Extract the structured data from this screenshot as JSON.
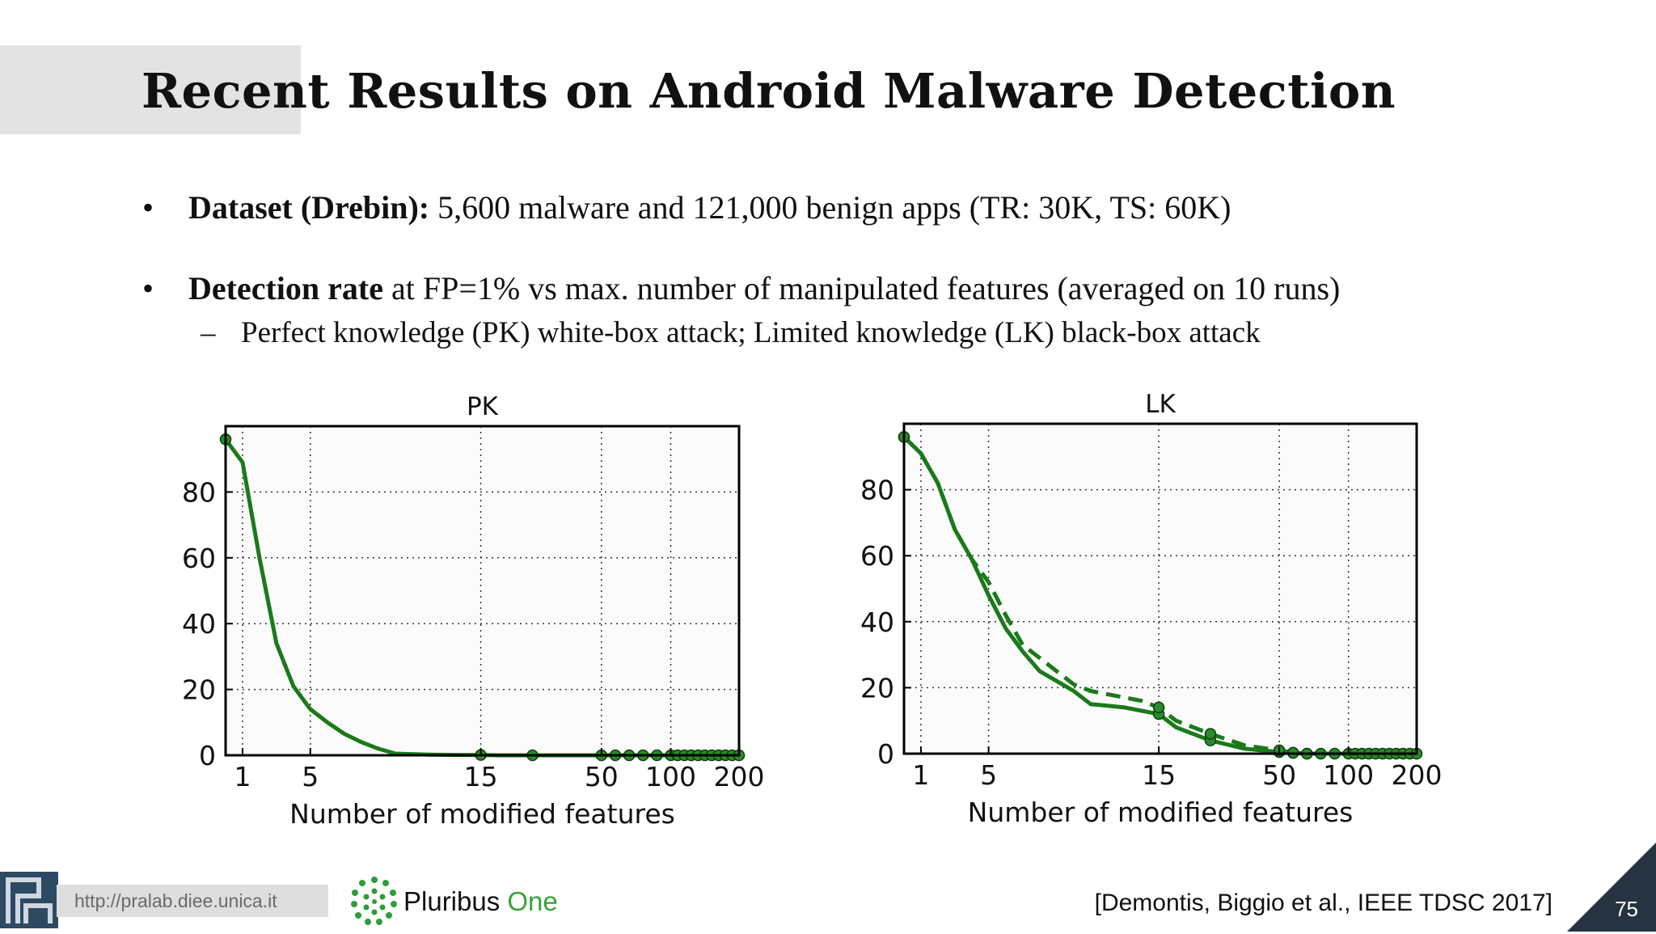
{
  "slide": {
    "title": "Recent Results on Android Malware Detection",
    "bullet1_bold": "Dataset (Drebin):",
    "bullet1_text": " 5,600 malware and 121,000 benign apps (TR: 30K, TS: 60K)",
    "bullet2_bold": "Detection rate",
    "bullet2_text": " at FP=1% vs max. number of manipulated features (averaged on 10 runs)",
    "sub_bullet": "Perfect knowledge (PK) white-box attack; Limited knowledge (LK) black-box attack",
    "bullet_glyph": "•",
    "dash_glyph": "–",
    "footer_url": "http://pralab.diee.unica.it",
    "brand_name_a": "Pluribus ",
    "brand_name_b": "One",
    "citation": "[Demontis, Biggio et al., IEEE TDSC 2017]",
    "page_number": "75",
    "accent_color": "#1a7a1a",
    "corner_color": "#263340"
  },
  "chart_data": [
    {
      "type": "line",
      "title": "PK",
      "xlabel": "Number of modified features",
      "ylabel": "",
      "ylim": [
        0,
        100
      ],
      "yticks": [
        0,
        20,
        40,
        60,
        80
      ],
      "xticks": [
        "1",
        "5",
        "15",
        "50",
        "100",
        "200"
      ],
      "grid": true,
      "series": [
        {
          "style": "solid",
          "x": [
            0,
            1,
            2,
            3,
            4,
            5,
            6,
            7,
            8,
            9,
            10,
            12,
            14,
            15,
            20,
            30,
            50,
            60,
            70,
            80,
            90,
            100,
            110,
            120,
            130,
            140,
            150,
            160,
            170,
            180,
            190,
            200
          ],
          "y": [
            96,
            89,
            60,
            34,
            21,
            14,
            10,
            6.5,
            4,
            2,
            0.5,
            0.2,
            0.1,
            0.1,
            0,
            0,
            0,
            0,
            0,
            0,
            0,
            0,
            0,
            0,
            0,
            0,
            0,
            0,
            0,
            0,
            0,
            0
          ],
          "markers": [
            0,
            15,
            30,
            50,
            60,
            70,
            80,
            90,
            100,
            110,
            120,
            130,
            140,
            150,
            160,
            170,
            180,
            190,
            200
          ]
        }
      ]
    },
    {
      "type": "line",
      "title": "LK",
      "xlabel": "Number of modified features",
      "ylabel": "",
      "ylim": [
        0,
        100
      ],
      "yticks": [
        0,
        20,
        40,
        60,
        80
      ],
      "xticks": [
        "1",
        "5",
        "15",
        "50",
        "100",
        "200"
      ],
      "grid": true,
      "series": [
        {
          "style": "solid",
          "x": [
            0,
            1,
            2,
            3,
            4,
            5,
            6,
            7,
            8,
            9,
            10,
            11,
            12,
            13,
            14,
            15,
            20,
            30,
            40,
            50,
            60,
            70,
            80,
            90,
            100,
            110,
            120,
            130,
            140,
            150,
            160,
            170,
            180,
            190,
            200
          ],
          "y": [
            96,
            91,
            82,
            68,
            59,
            48,
            38,
            31,
            25,
            22,
            19,
            15,
            14.5,
            14,
            13,
            12,
            8,
            4,
            1.5,
            0.5,
            0.2,
            0,
            0,
            0,
            0,
            0,
            0,
            0,
            0,
            0,
            0,
            0,
            0,
            0,
            0
          ],
          "markers": [
            0,
            15,
            30,
            50,
            60,
            70,
            80,
            90,
            100,
            110,
            120,
            130,
            140,
            150,
            160,
            170,
            180,
            190,
            200
          ]
        },
        {
          "style": "dashed",
          "x": [
            0,
            1,
            2,
            3,
            4,
            5,
            6,
            7,
            8,
            9,
            10,
            11,
            12,
            13,
            14,
            15,
            20,
            30,
            40,
            50,
            60,
            70,
            80,
            90,
            100,
            110,
            120,
            130,
            140,
            150,
            160,
            170,
            180,
            190,
            200
          ],
          "y": [
            96,
            91,
            82,
            68,
            59,
            52,
            42,
            33,
            29,
            25,
            21,
            19,
            18,
            17,
            16,
            14,
            10,
            6,
            2.5,
            1,
            0.3,
            0,
            0,
            0,
            0,
            0,
            0,
            0,
            0,
            0,
            0,
            0,
            0,
            0,
            0
          ],
          "markers": [
            0,
            15,
            30,
            50,
            60,
            70
          ]
        }
      ]
    }
  ]
}
